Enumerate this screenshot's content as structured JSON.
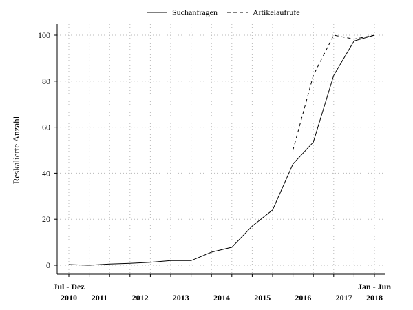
{
  "chart_data": {
    "type": "line",
    "ylabel": "Reskalierte Anzahl",
    "ylim": [
      0,
      100
    ],
    "y_ticks": [
      0,
      20,
      40,
      60,
      80,
      100
    ],
    "x_range": [
      0,
      15
    ],
    "x_start_label": "Jul - Dez",
    "x_end_label": "Jan - Jun",
    "x_year_labels": [
      {
        "x": 0,
        "label": "2010"
      },
      {
        "x": 1.5,
        "label": "2011"
      },
      {
        "x": 3.5,
        "label": "2012"
      },
      {
        "x": 5.5,
        "label": "2013"
      },
      {
        "x": 7.5,
        "label": "2014"
      },
      {
        "x": 9.5,
        "label": "2015"
      },
      {
        "x": 11.5,
        "label": "2016"
      },
      {
        "x": 13.5,
        "label": "2017"
      },
      {
        "x": 15,
        "label": "2018"
      }
    ],
    "grid": true,
    "legend_position": "top",
    "series": [
      {
        "name": "Suchanfragen",
        "style": "solid",
        "color": "#000000",
        "x": [
          0,
          1,
          2,
          3,
          4,
          5,
          6,
          7,
          8,
          9,
          10,
          11,
          12,
          13,
          14,
          15
        ],
        "values": [
          0.3,
          0,
          0.5,
          0.8,
          1.3,
          2,
          2,
          5.7,
          7.8,
          17,
          24,
          44,
          53.5,
          82.5,
          97.5,
          100
        ]
      },
      {
        "name": "Artikelaufrufe",
        "style": "dashed",
        "color": "#000000",
        "x": [
          11,
          12,
          13,
          14,
          15
        ],
        "values": [
          50,
          82.5,
          100,
          98.3,
          100
        ]
      }
    ]
  }
}
